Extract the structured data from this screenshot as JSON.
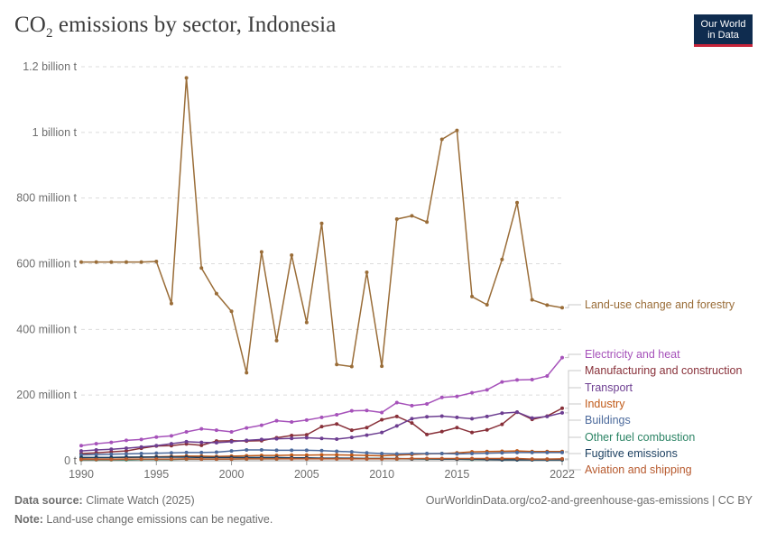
{
  "title_main": "CO",
  "title_sub": "2",
  "title_rest": " emissions by sector, Indonesia",
  "logo": {
    "line1": "Our World",
    "line2": "in Data"
  },
  "footer": {
    "source_label": "Data source:",
    "source_value": " Climate Watch (2025)",
    "url": "OurWorldinData.org/co2-and-greenhouse-gas-emissions | CC BY",
    "note_label": "Note:",
    "note_value": " Land-use change emissions can be negative."
  },
  "chart_data": {
    "type": "line",
    "ylim": [
      0,
      1200000000
    ],
    "xlim": [
      1990,
      2022
    ],
    "y_ticks": [
      {
        "value": 0,
        "label": "0 t"
      },
      {
        "value": 200000000,
        "label": "200 million t"
      },
      {
        "value": 400000000,
        "label": "400 million t"
      },
      {
        "value": 600000000,
        "label": "600 million t"
      },
      {
        "value": 800000000,
        "label": "800 million t"
      },
      {
        "value": 1000000000,
        "label": "1 billion t"
      },
      {
        "value": 1200000000,
        "label": "1.2 billion t"
      }
    ],
    "x_ticks": [
      {
        "value": 1990,
        "label": "1990"
      },
      {
        "value": 1995,
        "label": "1995"
      },
      {
        "value": 2000,
        "label": "2000"
      },
      {
        "value": 2005,
        "label": "2005"
      },
      {
        "value": 2010,
        "label": "2010"
      },
      {
        "value": 2015,
        "label": "2015"
      },
      {
        "value": 2022,
        "label": "2022"
      }
    ],
    "grid": true,
    "legend": "right",
    "x": [
      1990,
      1991,
      1992,
      1993,
      1994,
      1995,
      1996,
      1997,
      1998,
      1999,
      2000,
      2001,
      2002,
      2003,
      2004,
      2005,
      2006,
      2007,
      2008,
      2009,
      2010,
      2011,
      2012,
      2013,
      2014,
      2015,
      2016,
      2017,
      2018,
      2019,
      2020,
      2021,
      2022
    ],
    "series": [
      {
        "name": "Land-use change and forestry",
        "color": "#9a6d38",
        "values": [
          605,
          605,
          605,
          605,
          605,
          607,
          479,
          1166,
          587,
          509,
          455,
          268,
          636,
          366,
          626,
          421,
          723,
          293,
          287,
          574,
          288,
          736,
          746,
          727,
          979,
          1006,
          500,
          475,
          613,
          786,
          490,
          474,
          466
        ]
      },
      {
        "name": "Electricity and heat",
        "color": "#a652ba",
        "values": [
          46,
          52,
          56,
          62,
          65,
          72,
          76,
          88,
          97,
          93,
          88,
          100,
          108,
          122,
          118,
          124,
          132,
          140,
          152,
          153,
          147,
          177,
          168,
          173,
          193,
          196,
          207,
          216,
          240,
          246,
          247,
          258,
          314
        ]
      },
      {
        "name": "Manufacturing and construction",
        "color": "#883039",
        "values": [
          22,
          24,
          27,
          30,
          38,
          45,
          46,
          51,
          47,
          60,
          61,
          60,
          61,
          70,
          77,
          79,
          104,
          112,
          93,
          101,
          125,
          135,
          115,
          80,
          89,
          101,
          86,
          94,
          111,
          148,
          126,
          136,
          160
        ]
      },
      {
        "name": "Transport",
        "color": "#6d3e91",
        "values": [
          30,
          33,
          35,
          38,
          42,
          46,
          52,
          58,
          56,
          55,
          58,
          62,
          65,
          67,
          68,
          70,
          68,
          66,
          71,
          78,
          86,
          106,
          128,
          134,
          136,
          132,
          128,
          135,
          145,
          148,
          130,
          135,
          146
        ]
      },
      {
        "name": "Industry",
        "color": "#c05917",
        "values": [
          8,
          9,
          9,
          10,
          11,
          12,
          13,
          14,
          14,
          13,
          14,
          15,
          16,
          16,
          17,
          17,
          18,
          18,
          17,
          16,
          15,
          17,
          19,
          21,
          22,
          24,
          27,
          28,
          29,
          30,
          28,
          28,
          28
        ]
      },
      {
        "name": "Buildings",
        "color": "#4c6a9c",
        "values": [
          18,
          19,
          20,
          21,
          22,
          23,
          24,
          25,
          25,
          26,
          30,
          33,
          33,
          32,
          32,
          32,
          31,
          29,
          27,
          24,
          22,
          21,
          22,
          22,
          22,
          21,
          22,
          23,
          24,
          25,
          25,
          25,
          25
        ]
      },
      {
        "name": "Other fuel combustion",
        "color": "#2c8465",
        "values": [
          3,
          3,
          3,
          3,
          4,
          4,
          4,
          5,
          5,
          5,
          5,
          6,
          6,
          6,
          7,
          7,
          7,
          8,
          7,
          7,
          7,
          6,
          6,
          5,
          5,
          5,
          4,
          4,
          3,
          3,
          3,
          3,
          3
        ]
      },
      {
        "name": "Fugitive emissions",
        "color": "#1a3e5f",
        "values": [
          10,
          10,
          10,
          11,
          11,
          11,
          11,
          11,
          10,
          10,
          10,
          10,
          10,
          10,
          9,
          9,
          8,
          8,
          8,
          7,
          7,
          7,
          6,
          6,
          5,
          5,
          5,
          4,
          3,
          3,
          3,
          3,
          3
        ]
      },
      {
        "name": "Aviation and shipping",
        "color": "#b75a2e",
        "values": [
          4,
          4,
          4,
          5,
          5,
          5,
          5,
          6,
          5,
          5,
          5,
          6,
          6,
          6,
          6,
          6,
          6,
          6,
          6,
          6,
          6,
          6,
          7,
          7,
          7,
          7,
          7,
          7,
          7,
          7,
          5,
          5,
          6
        ]
      }
    ],
    "values_unit": "million t"
  }
}
